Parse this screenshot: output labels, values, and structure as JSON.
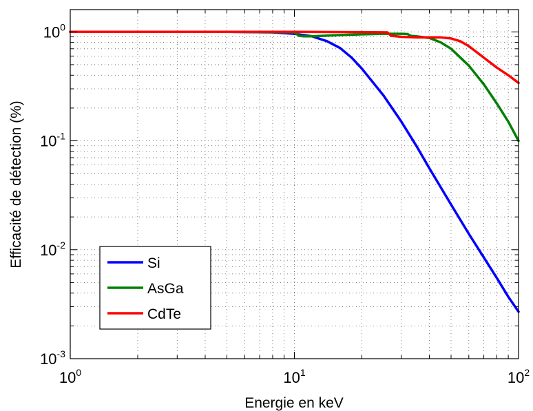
{
  "chart_data": {
    "type": "line",
    "xlabel": "Energie en keV",
    "ylabel": "Efficacité de détection (%)",
    "x_scale": "log",
    "y_scale": "log",
    "xlim": [
      1,
      100
    ],
    "ylim": [
      0.001,
      1.6
    ],
    "grid": true,
    "legend_position": "lower-left",
    "x_ticks": [
      {
        "base": "10",
        "exp": "0",
        "value": 1
      },
      {
        "base": "10",
        "exp": "1",
        "value": 10
      },
      {
        "base": "10",
        "exp": "2",
        "value": 100
      }
    ],
    "y_ticks": [
      {
        "base": "10",
        "exp": "0",
        "value": 1
      },
      {
        "base": "10",
        "exp": "-1",
        "value": 0.1
      },
      {
        "base": "10",
        "exp": "-2",
        "value": 0.01
      },
      {
        "base": "10",
        "exp": "-3",
        "value": 0.001
      }
    ],
    "series": [
      {
        "name": "Si",
        "color": "#0000ff",
        "x": [
          1,
          2,
          5,
          8,
          10,
          12,
          14,
          16,
          18,
          20,
          25,
          30,
          35,
          40,
          50,
          60,
          70,
          80,
          90,
          100
        ],
        "y": [
          1.0,
          1.0,
          1.0,
          0.99,
          0.96,
          0.91,
          0.82,
          0.71,
          0.58,
          0.46,
          0.26,
          0.15,
          0.09,
          0.056,
          0.026,
          0.014,
          0.0085,
          0.0055,
          0.0037,
          0.0027
        ]
      },
      {
        "name": "AsGa",
        "color": "#008000",
        "x": [
          1,
          5,
          10,
          10.5,
          11,
          12,
          15,
          20,
          25,
          30,
          32,
          33,
          35,
          40,
          45,
          50,
          60,
          70,
          80,
          90,
          100
        ],
        "y": [
          1.0,
          1.0,
          0.99,
          0.92,
          0.91,
          0.91,
          0.93,
          0.95,
          0.96,
          0.96,
          0.955,
          0.92,
          0.91,
          0.88,
          0.8,
          0.7,
          0.49,
          0.33,
          0.22,
          0.15,
          0.1
        ]
      },
      {
        "name": "CdTe",
        "color": "#ff0000",
        "x": [
          1,
          5,
          10,
          20,
          26,
          27,
          30,
          35,
          40,
          45,
          50,
          55,
          60,
          70,
          80,
          90,
          100
        ],
        "y": [
          1.0,
          1.0,
          1.0,
          0.995,
          0.99,
          0.92,
          0.9,
          0.89,
          0.89,
          0.89,
          0.87,
          0.82,
          0.74,
          0.58,
          0.47,
          0.4,
          0.34
        ]
      }
    ]
  }
}
